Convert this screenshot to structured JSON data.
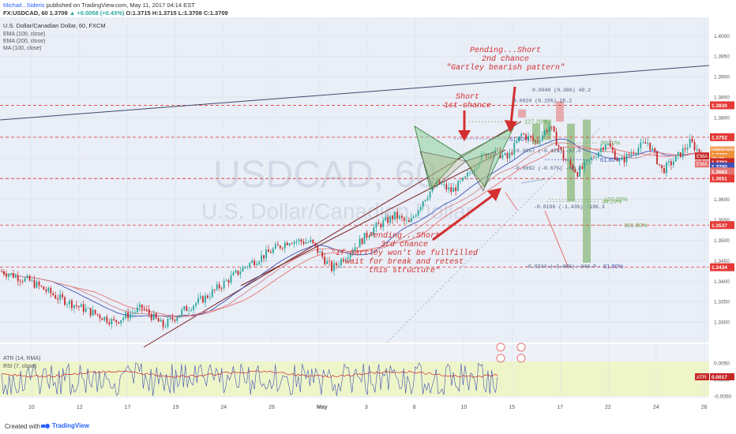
{
  "header": {
    "author": "Michail...Sideris",
    "published": " published on TradingView.com, May 11, 2017 04:14 EST",
    "symbol": "FX:USDCAD, 60",
    "price": " 1.3709",
    "change": "▲ +0.0058 (+0.43%)",
    "ohlc": " O:1.3715  H:1.3715  L:1.3708  C:1.3709"
  },
  "legend": {
    "title": "U.S. Dollar/Canadian Dollar, 60, FXCM",
    "lines": [
      "EMA (100, close)",
      "EMA (200, close)",
      "MA (100, close)"
    ]
  },
  "watermark": {
    "symbol": "USDCAD, 60",
    "name": "U.S. Dollar/Canadian Dollar"
  },
  "colors": {
    "bg": "#e9eef7",
    "up": "#26a69a",
    "down": "#c62828",
    "ema100": "#3f51b5",
    "ema200": "#e57373",
    "ma100": "#d4868a",
    "pattern": "#8fd19e",
    "fib": "#6aa84f",
    "hline": "#e53935",
    "atr_bg": "#eef5c8"
  },
  "chart_data": {
    "type": "candlestick",
    "instrument": "USDCAD",
    "timeframe": "60",
    "ylim": [
      1.325,
      1.4045
    ],
    "yticks": [
      1.33,
      1.335,
      1.34,
      1.345,
      1.35,
      1.355,
      1.36,
      1.365,
      1.37,
      1.375,
      1.38,
      1.385,
      1.39,
      1.395,
      1.4
    ],
    "xticks": [
      "10",
      "12",
      "17",
      "19",
      "24",
      "26",
      "May",
      "3",
      "8",
      "10",
      "15",
      "17",
      "22",
      "24",
      "26"
    ],
    "price_path": [
      [
        0,
        1.3424
      ],
      [
        2,
        1.34
      ],
      [
        4,
        1.336
      ],
      [
        6,
        1.333
      ],
      [
        8,
        1.33
      ],
      [
        10,
        1.3335
      ],
      [
        11.5,
        1.329
      ],
      [
        13,
        1.333
      ],
      [
        14.5,
        1.336
      ],
      [
        16,
        1.34
      ],
      [
        17.5,
        1.344
      ],
      [
        19,
        1.347
      ],
      [
        20.5,
        1.35
      ],
      [
        22,
        1.3495
      ],
      [
        23.5,
        1.343
      ],
      [
        25,
        1.348
      ],
      [
        26.5,
        1.353
      ],
      [
        28,
        1.356
      ],
      [
        29,
        1.354
      ],
      [
        30,
        1.36
      ],
      [
        31,
        1.364
      ],
      [
        32,
        1.362
      ],
      [
        33,
        1.365
      ],
      [
        34,
        1.37
      ],
      [
        35,
        1.372
      ],
      [
        36,
        1.37
      ],
      [
        37,
        1.376
      ],
      [
        38,
        1.374
      ],
      [
        39,
        1.378
      ],
      [
        40,
        1.37
      ],
      [
        41,
        1.3665
      ],
      [
        42,
        1.37
      ],
      [
        43,
        1.374
      ],
      [
        44,
        1.369
      ],
      [
        45,
        1.372
      ],
      [
        46,
        1.374
      ],
      [
        47,
        1.367
      ],
      [
        48,
        1.37
      ],
      [
        49,
        1.374
      ],
      [
        49.8,
        1.3709
      ]
    ],
    "horizontal_levels": [
      "1.3830",
      "1.3752",
      "1.3651",
      "1.3537",
      "1.3434"
    ],
    "price_labels": [
      {
        "label": "1.3830",
        "value": 1.383,
        "color": "#e53935"
      },
      {
        "label": "1.3752",
        "value": 1.3752,
        "color": "#e53935"
      },
      {
        "label": "USDCAD",
        "value": 1.372,
        "color": "#f4a460",
        "text": "USDCAD"
      },
      {
        "label": "1.3709",
        "value": 1.3709,
        "color": "#ef8f3a"
      },
      {
        "label": "45:35",
        "value": 1.37,
        "color": "#ef8f3a"
      },
      {
        "label": "1.3702",
        "value": 1.3691,
        "color": "#c62828"
      },
      {
        "label": "1.3700",
        "value": 1.368,
        "color": "#3f51b5"
      },
      {
        "label": "1.3683",
        "value": 1.3668,
        "color": "#e57373"
      },
      {
        "label": "1.3651",
        "value": 1.3651,
        "color": "#e53935"
      },
      {
        "label": "1.3537",
        "value": 1.3537,
        "color": "#e53935"
      },
      {
        "label": "1.3434",
        "value": 1.3434,
        "color": "#e53935"
      }
    ],
    "ema_tags": [
      "EMA",
      "EMA"
    ],
    "fib_labels": [
      {
        "text": "127.20%",
        "color": "#6aa84f"
      },
      {
        "text": "61.80%",
        "color": "#3f51b5"
      },
      {
        "text": "38.20%",
        "color": "#6aa84f"
      },
      {
        "text": "61.80%",
        "color": "#3f51b5"
      },
      {
        "text": "127.20%",
        "color": "#6aa84f"
      },
      {
        "text": "38.20%",
        "color": "#6aa84f"
      },
      {
        "text": "161.80%",
        "color": "#6aa84f"
      },
      {
        "text": "61.80%",
        "color": "#3f51b5"
      }
    ],
    "measure_labels": [
      "0.0049 (0.36%) 49.2",
      "0.0020 (0.15%) 25.2",
      "-0.0057 (-0.42%) -57.0",
      "-0.0092 (-0.67%) -92.2",
      "-0.0196 (-1.43%) -196.3",
      "-0.0344 (-2.49%) -343.7"
    ],
    "annotations": [
      {
        "lines": [
          "Pending...Short",
          "2nd chance",
          "\"Gartley bearish pattern\""
        ]
      },
      {
        "lines": [
          "Short",
          "1st chance"
        ]
      },
      {
        "lines": [
          "Pending...Short",
          "3rd chance",
          "\"If Gartley won't be fullfilled",
          "wait for break and retest",
          "this structure\""
        ]
      }
    ],
    "indicators": {
      "atr": {
        "label": "ATR (14, RMA)",
        "value": "0.0017",
        "tag": "ATR"
      },
      "rsi": {
        "label": "RSI (7, close)"
      },
      "yticks": [
        "0.0050",
        "0.0000",
        "-0.0050"
      ]
    }
  },
  "footer": {
    "created": "Created with",
    "brand": "TradingView"
  }
}
